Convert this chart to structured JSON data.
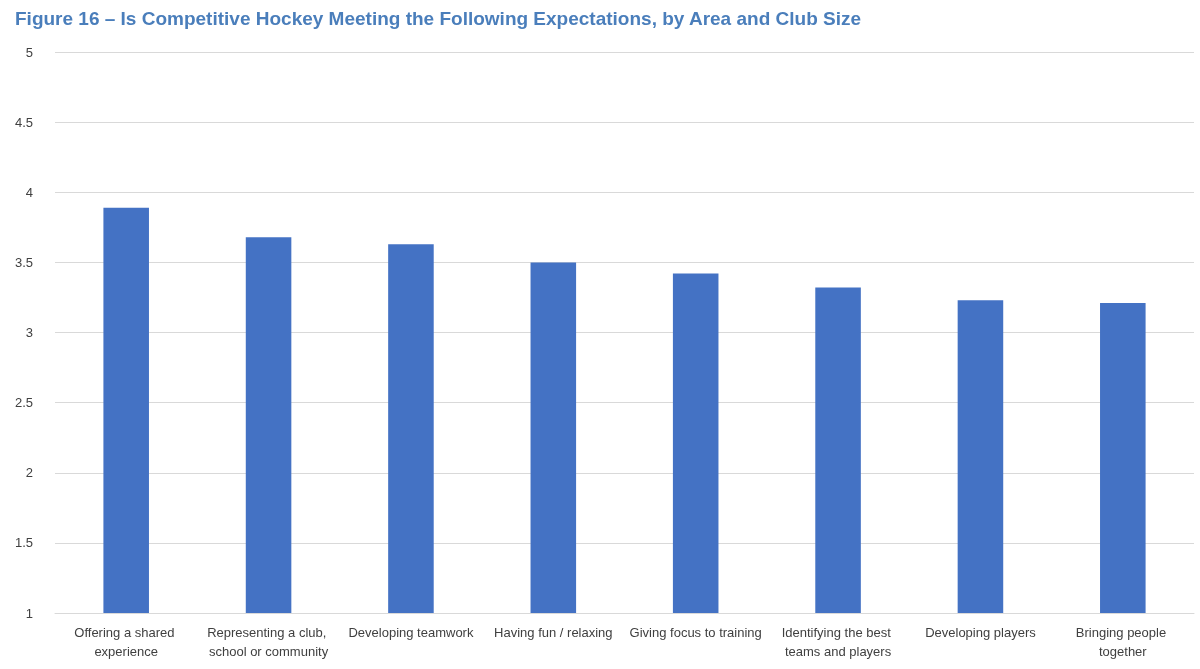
{
  "chart_data": {
    "type": "bar",
    "title": "Figure 16 – Is Competitive Hockey Meeting the Following Expectations, by Area and Club Size",
    "categories": [
      "Offering a shared experience",
      "Representing a club, school or community",
      "Developing teamwork",
      "Having fun / relaxing",
      "Giving focus to training",
      "Identifying the best teams and players",
      "Developing players",
      "Bringing people together"
    ],
    "values": [
      3.89,
      3.68,
      3.63,
      3.5,
      3.42,
      3.32,
      3.23,
      3.21
    ],
    "color": "#4472c4",
    "ylim": [
      1,
      5
    ],
    "yticks": [
      1,
      1.5,
      2,
      2.5,
      3,
      3.5,
      4,
      4.5,
      5
    ],
    "grid": "y"
  }
}
